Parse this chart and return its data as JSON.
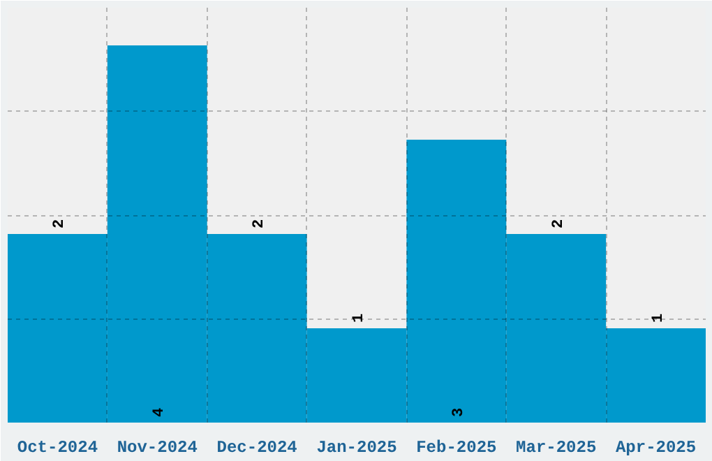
{
  "chart_data": {
    "type": "bar",
    "categories": [
      "Oct-2024",
      "Nov-2024",
      "Dec-2024",
      "Jan-2025",
      "Feb-2025",
      "Mar-2025",
      "Apr-2025"
    ],
    "values": [
      2,
      4,
      2,
      1,
      3,
      2,
      1
    ],
    "color": "#0099cc",
    "ylim": [
      0,
      4.4
    ],
    "yticks": [
      {
        "value": 1.1,
        "label": null
      },
      {
        "value": 2.2,
        "label": null
      },
      {
        "value": 3.3,
        "label": null
      }
    ],
    "grid": true,
    "data_labels": true,
    "tick_labels": "x"
  }
}
